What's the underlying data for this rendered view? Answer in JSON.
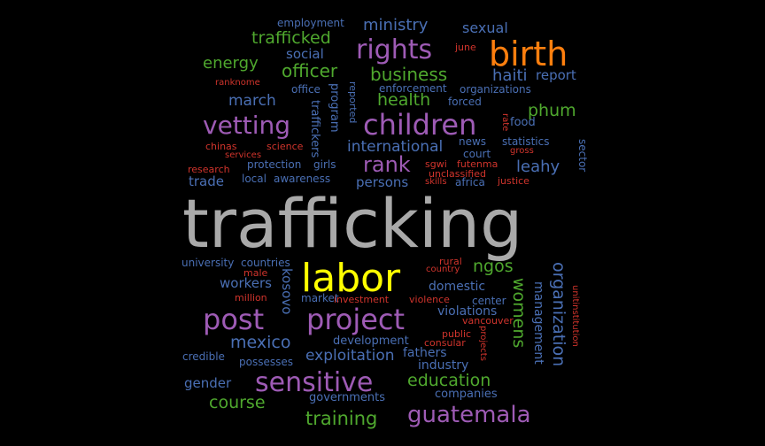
{
  "colors": {
    "background": "#000000",
    "gray": "#a9a9a9",
    "orange": "#ff7f0e",
    "yellow": "#ffff00",
    "purple": "#9e5bb5",
    "green": "#4fa82e",
    "blue": "#4a6fb4",
    "red": "#d0342c"
  },
  "words": [
    {
      "text": "trafficking",
      "color": "gray"
    },
    {
      "text": "labor",
      "color": "yellow"
    },
    {
      "text": "birth",
      "color": "orange"
    },
    {
      "text": "rights",
      "color": "purple"
    },
    {
      "text": "children",
      "color": "purple"
    },
    {
      "text": "vetting",
      "color": "purple"
    },
    {
      "text": "project",
      "color": "purple"
    },
    {
      "text": "post",
      "color": "purple"
    },
    {
      "text": "sensitive",
      "color": "purple"
    },
    {
      "text": "guatemala",
      "color": "purple"
    },
    {
      "text": "rank",
      "color": "purple"
    },
    {
      "text": "trafficked",
      "color": "green"
    },
    {
      "text": "officer",
      "color": "green"
    },
    {
      "text": "business",
      "color": "green"
    },
    {
      "text": "health",
      "color": "green"
    },
    {
      "text": "energy",
      "color": "green"
    },
    {
      "text": "phum",
      "color": "green"
    },
    {
      "text": "ngos",
      "color": "green"
    },
    {
      "text": "education",
      "color": "green"
    },
    {
      "text": "training",
      "color": "green"
    },
    {
      "text": "course",
      "color": "green"
    },
    {
      "text": "womens",
      "color": "green"
    },
    {
      "text": "ministry",
      "color": "blue"
    },
    {
      "text": "sexual",
      "color": "blue"
    },
    {
      "text": "social",
      "color": "blue"
    },
    {
      "text": "haiti",
      "color": "blue"
    },
    {
      "text": "report",
      "color": "blue"
    },
    {
      "text": "march",
      "color": "blue"
    },
    {
      "text": "international",
      "color": "blue"
    },
    {
      "text": "leahy",
      "color": "blue"
    },
    {
      "text": "mexico",
      "color": "blue"
    },
    {
      "text": "exploitation",
      "color": "blue"
    },
    {
      "text": "gender",
      "color": "blue"
    },
    {
      "text": "persons",
      "color": "blue"
    },
    {
      "text": "trade",
      "color": "blue"
    },
    {
      "text": "workers",
      "color": "blue"
    },
    {
      "text": "domestic",
      "color": "blue"
    },
    {
      "text": "violations",
      "color": "blue"
    },
    {
      "text": "fathers",
      "color": "blue"
    },
    {
      "text": "industry",
      "color": "blue"
    },
    {
      "text": "governments",
      "color": "blue"
    },
    {
      "text": "companies",
      "color": "blue"
    },
    {
      "text": "development",
      "color": "blue"
    },
    {
      "text": "organization",
      "color": "blue"
    },
    {
      "text": "management",
      "color": "blue"
    },
    {
      "text": "kosovo",
      "color": "blue"
    },
    {
      "text": "employment",
      "color": "blue"
    },
    {
      "text": "office",
      "color": "blue"
    },
    {
      "text": "enforcement",
      "color": "blue"
    },
    {
      "text": "organizations",
      "color": "blue"
    },
    {
      "text": "forced",
      "color": "blue"
    },
    {
      "text": "food",
      "color": "blue"
    },
    {
      "text": "news",
      "color": "blue"
    },
    {
      "text": "statistics",
      "color": "blue"
    },
    {
      "text": "court",
      "color": "blue"
    },
    {
      "text": "protection",
      "color": "blue"
    },
    {
      "text": "girls",
      "color": "blue"
    },
    {
      "text": "local",
      "color": "blue"
    },
    {
      "text": "awareness",
      "color": "blue"
    },
    {
      "text": "africa",
      "color": "blue"
    },
    {
      "text": "university",
      "color": "blue"
    },
    {
      "text": "countries",
      "color": "blue"
    },
    {
      "text": "market",
      "color": "blue"
    },
    {
      "text": "center",
      "color": "blue"
    },
    {
      "text": "credible",
      "color": "blue"
    },
    {
      "text": "possesses",
      "color": "blue"
    },
    {
      "text": "program",
      "color": "blue"
    },
    {
      "text": "traffickers",
      "color": "blue"
    },
    {
      "text": "reported",
      "color": "blue"
    },
    {
      "text": "sector",
      "color": "blue"
    },
    {
      "text": "june",
      "color": "red"
    },
    {
      "text": "ranknome",
      "color": "red"
    },
    {
      "text": "chinas",
      "color": "red"
    },
    {
      "text": "services",
      "color": "red"
    },
    {
      "text": "science",
      "color": "red"
    },
    {
      "text": "research",
      "color": "red"
    },
    {
      "text": "sgwi",
      "color": "red"
    },
    {
      "text": "futenma",
      "color": "red"
    },
    {
      "text": "unclassified",
      "color": "red"
    },
    {
      "text": "skills",
      "color": "red"
    },
    {
      "text": "justice",
      "color": "red"
    },
    {
      "text": "gross",
      "color": "red"
    },
    {
      "text": "rate",
      "color": "red"
    },
    {
      "text": "rural",
      "color": "red"
    },
    {
      "text": "country",
      "color": "red"
    },
    {
      "text": "male",
      "color": "red"
    },
    {
      "text": "million",
      "color": "red"
    },
    {
      "text": "investment",
      "color": "red"
    },
    {
      "text": "violence",
      "color": "red"
    },
    {
      "text": "vancouver",
      "color": "red"
    },
    {
      "text": "public",
      "color": "red"
    },
    {
      "text": "consular",
      "color": "red"
    },
    {
      "text": "projects",
      "color": "red"
    },
    {
      "text": "unitinstitution",
      "color": "red"
    }
  ]
}
